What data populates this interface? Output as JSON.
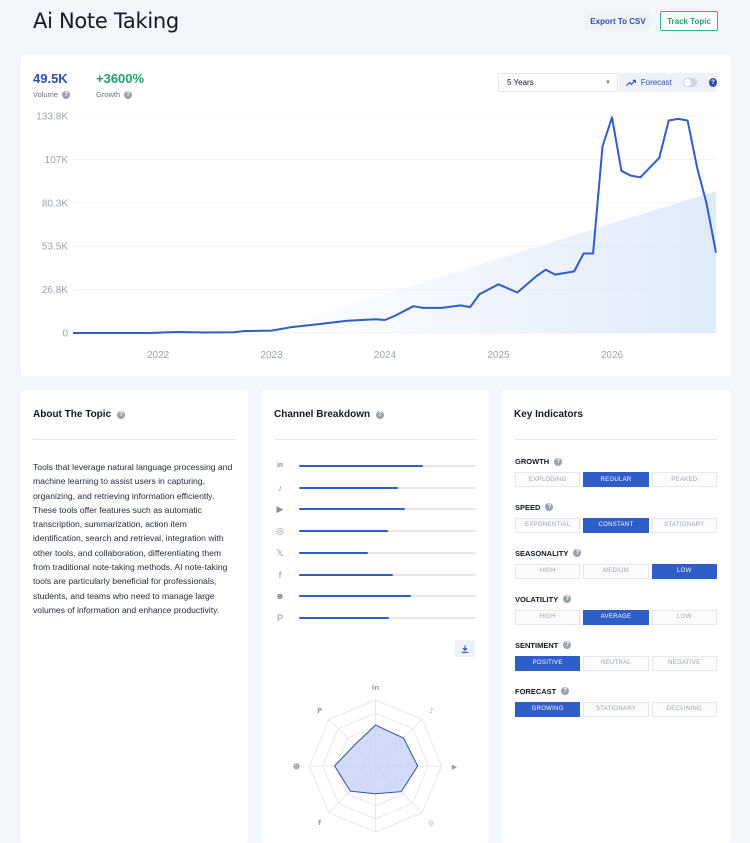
{
  "header": {
    "title": "Ai Note Taking",
    "export_label": "Export To CSV",
    "track_label": "Track Topic"
  },
  "metrics": {
    "volume_value": "49.5K",
    "volume_label": "Volume",
    "growth_value": "+3600%",
    "growth_label": "Growth"
  },
  "controls": {
    "period": "5 Years",
    "forecast_label": "Forecast",
    "forecast_enabled": false
  },
  "colors": {
    "accent": "#2f5ec8",
    "growth": "#22a06b",
    "volume": "#2f4fb0"
  },
  "chart_data": {
    "type": "line",
    "title": "",
    "xlabel": "",
    "ylabel": "",
    "y_ticks": [
      "0",
      "26.8K",
      "53.5K",
      "80.3K",
      "107K",
      "133.8K"
    ],
    "x_ticks": [
      "2022",
      "2023",
      "2024",
      "2025",
      "2026"
    ],
    "ylim": [
      0,
      133800
    ],
    "grid": true,
    "series": [
      {
        "values": [
          {
            "x": "2021-04",
            "y": 0
          },
          {
            "x": "2021-12",
            "y": 0
          },
          {
            "x": "2022-03",
            "y": 600
          },
          {
            "x": "2022-06",
            "y": 300
          },
          {
            "x": "2022-09",
            "y": 500
          },
          {
            "x": "2022-10",
            "y": 1200
          },
          {
            "x": "2023-01",
            "y": 1500
          },
          {
            "x": "2023-03",
            "y": 3500
          },
          {
            "x": "2023-06",
            "y": 5500
          },
          {
            "x": "2023-09",
            "y": 7500
          },
          {
            "x": "2023-12",
            "y": 8500
          },
          {
            "x": "2024-01",
            "y": 8000
          },
          {
            "x": "2024-02",
            "y": 10500
          },
          {
            "x": "2024-04",
            "y": 16500
          },
          {
            "x": "2024-05",
            "y": 15500
          },
          {
            "x": "2024-07",
            "y": 15500
          },
          {
            "x": "2024-09",
            "y": 17000
          },
          {
            "x": "2024-10",
            "y": 16000
          },
          {
            "x": "2024-11",
            "y": 24000
          },
          {
            "x": "2025-01",
            "y": 30000
          },
          {
            "x": "2025-03",
            "y": 25000
          },
          {
            "x": "2025-05",
            "y": 35000
          },
          {
            "x": "2025-06",
            "y": 39000
          },
          {
            "x": "2025-07",
            "y": 36000
          },
          {
            "x": "2025-09",
            "y": 38000
          },
          {
            "x": "2025-10",
            "y": 49000
          },
          {
            "x": "2025-11",
            "y": 49000
          },
          {
            "x": "2025-12",
            "y": 115000
          },
          {
            "x": "2026-01",
            "y": 133000
          },
          {
            "x": "2026-02",
            "y": 100000
          },
          {
            "x": "2026-03",
            "y": 97000
          },
          {
            "x": "2026-04",
            "y": 96000
          },
          {
            "x": "2026-06",
            "y": 108000
          },
          {
            "x": "2026-07",
            "y": 131000
          },
          {
            "x": "2026-08",
            "y": 132000
          },
          {
            "x": "2026-09",
            "y": 131000
          },
          {
            "x": "2026-10",
            "y": 102000
          },
          {
            "x": "2026-11",
            "y": 80000
          },
          {
            "x": "2026-12",
            "y": 49500
          }
        ]
      }
    ]
  },
  "about": {
    "title": "About The Topic",
    "text": "Tools that leverage natural language processing and machine learning to assist users in capturing, organizing, and retrieving information efficiently. These tools offer features such as automatic transcription, summarization, action item identification, search and retrieval, integration with other tools, and collaboration, differentiating them from traditional note-taking methods. AI note-taking tools are particularly beneficial for professionals, students, and teams who need to manage large volumes of information and enhance productivity."
  },
  "channels": {
    "title": "Channel Breakdown",
    "items": [
      {
        "icon": "linkedin-icon",
        "glyph": "in",
        "share": 0.7
      },
      {
        "icon": "tiktok-icon",
        "glyph": "♪",
        "share": 0.56
      },
      {
        "icon": "youtube-icon",
        "glyph": "▶",
        "share": 0.6
      },
      {
        "icon": "instagram-icon",
        "glyph": "◎",
        "share": 0.5
      },
      {
        "icon": "x-icon",
        "glyph": "𝕏",
        "share": 0.39
      },
      {
        "icon": "facebook-icon",
        "glyph": "f",
        "share": 0.53
      },
      {
        "icon": "reddit-icon",
        "glyph": "☻",
        "share": 0.63
      },
      {
        "icon": "pinterest-icon",
        "glyph": "P",
        "share": 0.51
      }
    ],
    "radar_axes": [
      "linkedin-icon",
      "tiktok-icon",
      "youtube-icon",
      "instagram-icon",
      "x-icon",
      "facebook-icon",
      "reddit-icon",
      "pinterest-icon"
    ],
    "radar_glyphs": [
      "in",
      "♪",
      "▶",
      "◎",
      "𝕏",
      "f",
      "☻",
      "P"
    ],
    "radar_values": [
      0.62,
      0.6,
      0.64,
      0.55,
      0.42,
      0.54,
      0.62,
      0.45
    ]
  },
  "indicators": {
    "title": "Key Indicators",
    "groups": [
      {
        "label": "GROWTH",
        "options": [
          "EXPLODING",
          "REGULAR",
          "PEAKED"
        ],
        "selected": 1
      },
      {
        "label": "SPEED",
        "options": [
          "EXPONENTIAL",
          "CONSTANT",
          "STATIONARY"
        ],
        "selected": 1
      },
      {
        "label": "SEASONALITY",
        "options": [
          "HIGH",
          "MEDIUM",
          "LOW"
        ],
        "selected": 2
      },
      {
        "label": "VOLATILITY",
        "options": [
          "HIGH",
          "AVERAGE",
          "LOW"
        ],
        "selected": 1
      },
      {
        "label": "SENTIMENT",
        "options": [
          "POSITIVE",
          "NEUTRAL",
          "NEGATIVE"
        ],
        "selected": 0
      },
      {
        "label": "FORECAST",
        "options": [
          "GROWING",
          "STATIONARY",
          "DECLINING"
        ],
        "selected": 0
      }
    ]
  }
}
